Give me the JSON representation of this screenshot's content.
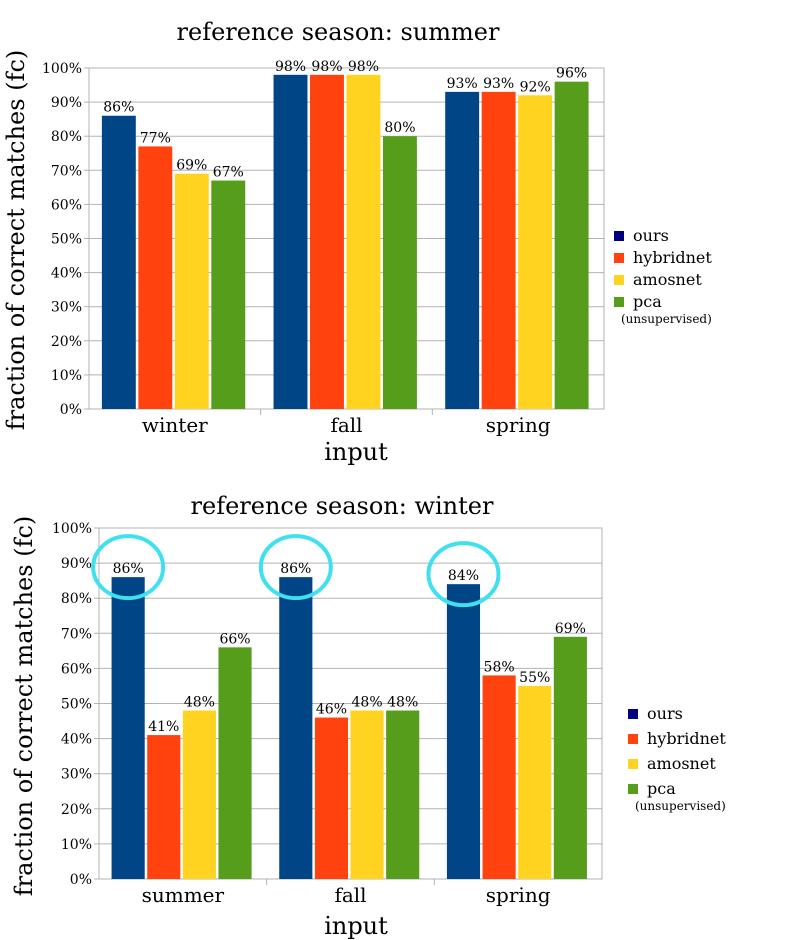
{
  "chart_data": [
    {
      "type": "bar",
      "title": "reference season: summer",
      "xlabel": "input",
      "ylabel": "fraction of correct matches (fc)",
      "ylim": [
        0,
        100
      ],
      "yticks": [
        "0%",
        "10%",
        "20%",
        "30%",
        "40%",
        "50%",
        "60%",
        "70%",
        "80%",
        "90%",
        "100%"
      ],
      "categories": [
        "winter",
        "fall",
        "spring"
      ],
      "series": [
        {
          "name": "ours",
          "values": [
            86,
            98,
            93
          ],
          "labels": [
            "86%",
            "98%",
            "93%"
          ],
          "color": "#004586"
        },
        {
          "name": "hybridnet",
          "values": [
            77,
            98,
            93
          ],
          "labels": [
            "77%",
            "98%",
            "93%"
          ],
          "color": "#ff420e"
        },
        {
          "name": "amosnet",
          "values": [
            69,
            98,
            92
          ],
          "labels": [
            "69%",
            "98%",
            "92%"
          ],
          "color": "#ffd320"
        },
        {
          "name": "pca",
          "values": [
            67,
            80,
            96
          ],
          "labels": [
            "67%",
            "80%",
            "96%"
          ],
          "color": "#579d1c"
        }
      ],
      "legend_note": "(unsupervised)",
      "legend_marker_ours": "#000080",
      "grid": true,
      "legend_position": "right"
    },
    {
      "type": "bar",
      "title": "reference season: winter",
      "xlabel": "input",
      "ylabel": "fraction of correct matches (fc)",
      "ylim": [
        0,
        100
      ],
      "yticks": [
        "0%",
        "10%",
        "20%",
        "30%",
        "40%",
        "50%",
        "60%",
        "70%",
        "80%",
        "90%",
        "100%"
      ],
      "categories": [
        "summer",
        "fall",
        "spring"
      ],
      "series": [
        {
          "name": "ours",
          "values": [
            86,
            86,
            84
          ],
          "labels": [
            "86%",
            "86%",
            "84%"
          ],
          "color": "#004586"
        },
        {
          "name": "hybridnet",
          "values": [
            41,
            46,
            58
          ],
          "labels": [
            "41%",
            "46%",
            "58%"
          ],
          "color": "#ff420e"
        },
        {
          "name": "amosnet",
          "values": [
            48,
            48,
            55
          ],
          "labels": [
            "48%",
            "48%",
            "55%"
          ],
          "color": "#ffd320"
        },
        {
          "name": "pca",
          "values": [
            66,
            48,
            69
          ],
          "labels": [
            "66%",
            "48%",
            "69%"
          ],
          "color": "#579d1c"
        }
      ],
      "legend_note": "(unsupervised)",
      "legend_marker_ours": "#000080",
      "grid": true,
      "legend_position": "right",
      "highlight_series": "ours",
      "highlight_color": "#3fe0f0"
    }
  ]
}
